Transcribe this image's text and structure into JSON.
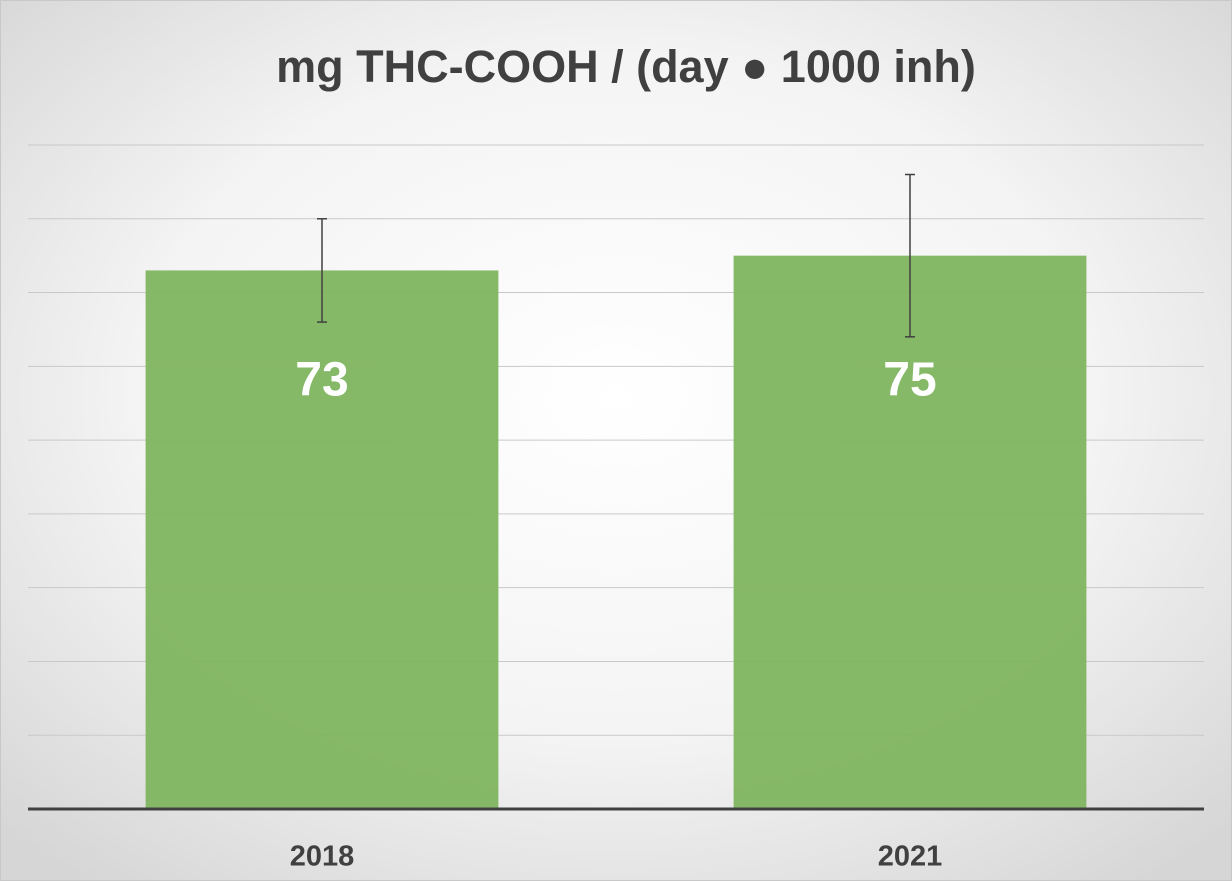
{
  "chart_data": {
    "type": "bar",
    "title": "mg THC-COOH / (day ● 1000 inh)",
    "categories": [
      "2018",
      "2021"
    ],
    "series": [
      {
        "values": [
          73,
          75
        ],
        "error": [
          7,
          11
        ],
        "color": "#7fb55f"
      }
    ],
    "ylim": [
      0,
      90
    ],
    "yticks": [
      10,
      20,
      30,
      40,
      50,
      60,
      70,
      80,
      90
    ],
    "grid": true
  }
}
